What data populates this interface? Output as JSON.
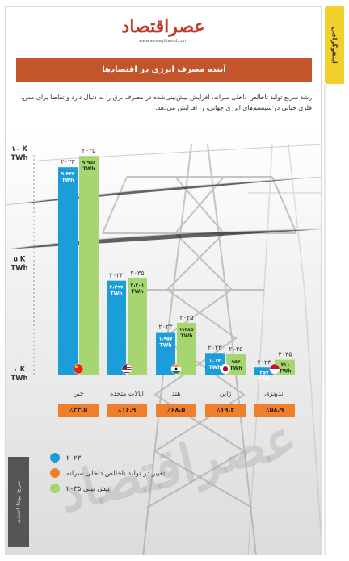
{
  "side_tab": "اینفوگرافی",
  "logo": {
    "name": "عصراقتصاد",
    "url": "www.asreeghtesad.com"
  },
  "banner_title": "آینده مصرف انرژی در اقتصادها",
  "description": "رشد سریع تولید ناخالص داخلی سرانه، افزایش پیش‌بینی‌شده در مصرف برق را به دنبال دارد و تقاضا برای مس، فلزی حیاتی در سیستم‌های انرژی جهانی، را افزایش می‌دهد.",
  "designer": "طراح: نیوشا اعتمادی",
  "colors": {
    "y2023": "#1b9dd9",
    "gdp_change": "#ef7f2b",
    "y2035": "#a7d56f",
    "banner": "#c3552d"
  },
  "chart_data": {
    "type": "bar",
    "categories": [
      "چین",
      "ایالات متحده",
      "هند",
      "ژاپن",
      "اندونزی"
    ],
    "category_flags": [
      "china-flag-icon",
      "usa-flag-icon",
      "india-flag-icon",
      "japan-flag-icon",
      "indonesia-flag-icon"
    ],
    "series": [
      {
        "name": "۲۰۲۳",
        "values": [
          9443,
          4297,
          1957,
          1013,
          357
        ],
        "labels": [
          "۹،۴۴۳ TWh",
          "۴،۲۹۷ TWh",
          "۱،۹۵۷ TWh",
          "۱۰۱۳ TWh",
          "۳۵۷ TWh"
        ]
      },
      {
        "name": "پیش بینی ۲۰۳۵",
        "values": [
          9956,
          4401,
          2385,
          954,
          711
        ],
        "labels": [
          "۹،۹۵۶ TWh",
          "۴،۴۰۱ TWh",
          "۲،۳۸۵ TWh",
          "۹۵۴ TWh",
          "۷۱۱ TWh"
        ]
      }
    ],
    "bar_year_labels": [
      "۲۰۲۳",
      "۲۰۳۵"
    ],
    "gdp_change_name": "تغییر در تولید ناخالص داخلی سرانه",
    "gdp_change": [
      "٪۴۴.۵",
      "٪۱۶.۹",
      "٪۶۸.۵",
      "٪۱۹.۲",
      "٪۵۸.۹"
    ],
    "y_ticks": [
      {
        "value": 0,
        "label": [
          "۰ K",
          "TWh"
        ]
      },
      {
        "value": 5000,
        "label": [
          "۵ K",
          "TWh"
        ]
      },
      {
        "value": 10000,
        "label": [
          "۱۰ K",
          "TWh"
        ]
      }
    ],
    "ylim": [
      0,
      10000
    ],
    "legend": [
      "۲۰۲۳",
      "تغییر در تولید ناخالص داخلی سرانه",
      "پیش بینی ۲۰۳۵"
    ]
  }
}
